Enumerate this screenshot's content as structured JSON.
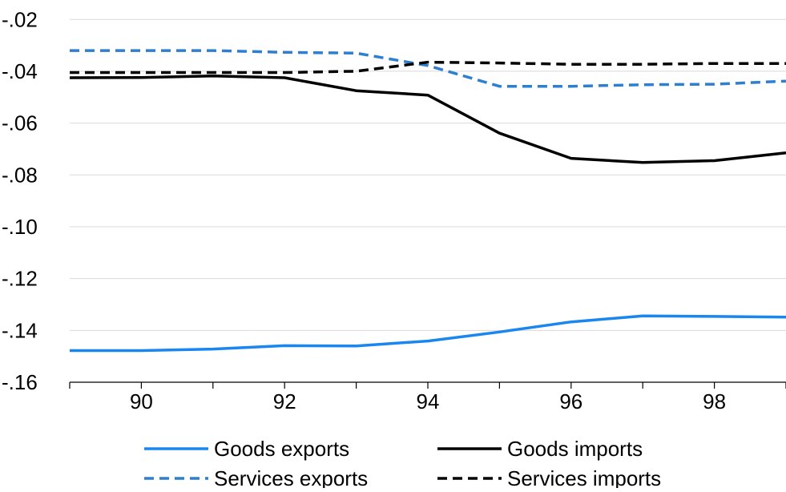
{
  "chart_data": {
    "type": "line",
    "title": "",
    "xlabel": "",
    "ylabel": "",
    "x": [
      89,
      90,
      91,
      92,
      93,
      94,
      95,
      96,
      97,
      98,
      99
    ],
    "x_tick_values": [
      90,
      92,
      94,
      96,
      98
    ],
    "x_tick_labels": [
      "90",
      "92",
      "94",
      "96",
      "98"
    ],
    "xlim": [
      89,
      99
    ],
    "y_tick_values": [
      -0.02,
      -0.04,
      -0.06,
      -0.08,
      -0.1,
      -0.12,
      -0.14,
      -0.16
    ],
    "y_tick_labels": [
      "-.02",
      "-.04",
      "-.06",
      "-.08",
      "-.10",
      "-.12",
      "-.14",
      "-.16"
    ],
    "ylim": [
      -0.16,
      -0.0125
    ],
    "grid": "horizontal",
    "legend_position": "bottom",
    "series": [
      {
        "name": "Goods exports",
        "color": "#1a86f0",
        "style": "solid",
        "values": [
          -0.1478,
          -0.1478,
          -0.1472,
          -0.1459,
          -0.146,
          -0.1441,
          -0.1406,
          -0.1367,
          -0.1344,
          -0.1346,
          -0.1349
        ]
      },
      {
        "name": "Goods imports",
        "color": "#000000",
        "style": "solid",
        "values": [
          -0.0425,
          -0.0424,
          -0.0418,
          -0.0425,
          -0.0475,
          -0.0492,
          -0.0639,
          -0.0736,
          -0.0752,
          -0.0745,
          -0.0715
        ]
      },
      {
        "name": "Services exports",
        "color": "#2e7fd0",
        "style": "dashed",
        "values": [
          -0.032,
          -0.032,
          -0.032,
          -0.0327,
          -0.033,
          -0.0378,
          -0.0458,
          -0.0458,
          -0.0452,
          -0.045,
          -0.0438
        ]
      },
      {
        "name": "Services imports",
        "color": "#000000",
        "style": "dashed",
        "values": [
          -0.0405,
          -0.0405,
          -0.0405,
          -0.0405,
          -0.04,
          -0.0365,
          -0.0368,
          -0.0373,
          -0.0373,
          -0.037,
          -0.037
        ]
      }
    ]
  }
}
